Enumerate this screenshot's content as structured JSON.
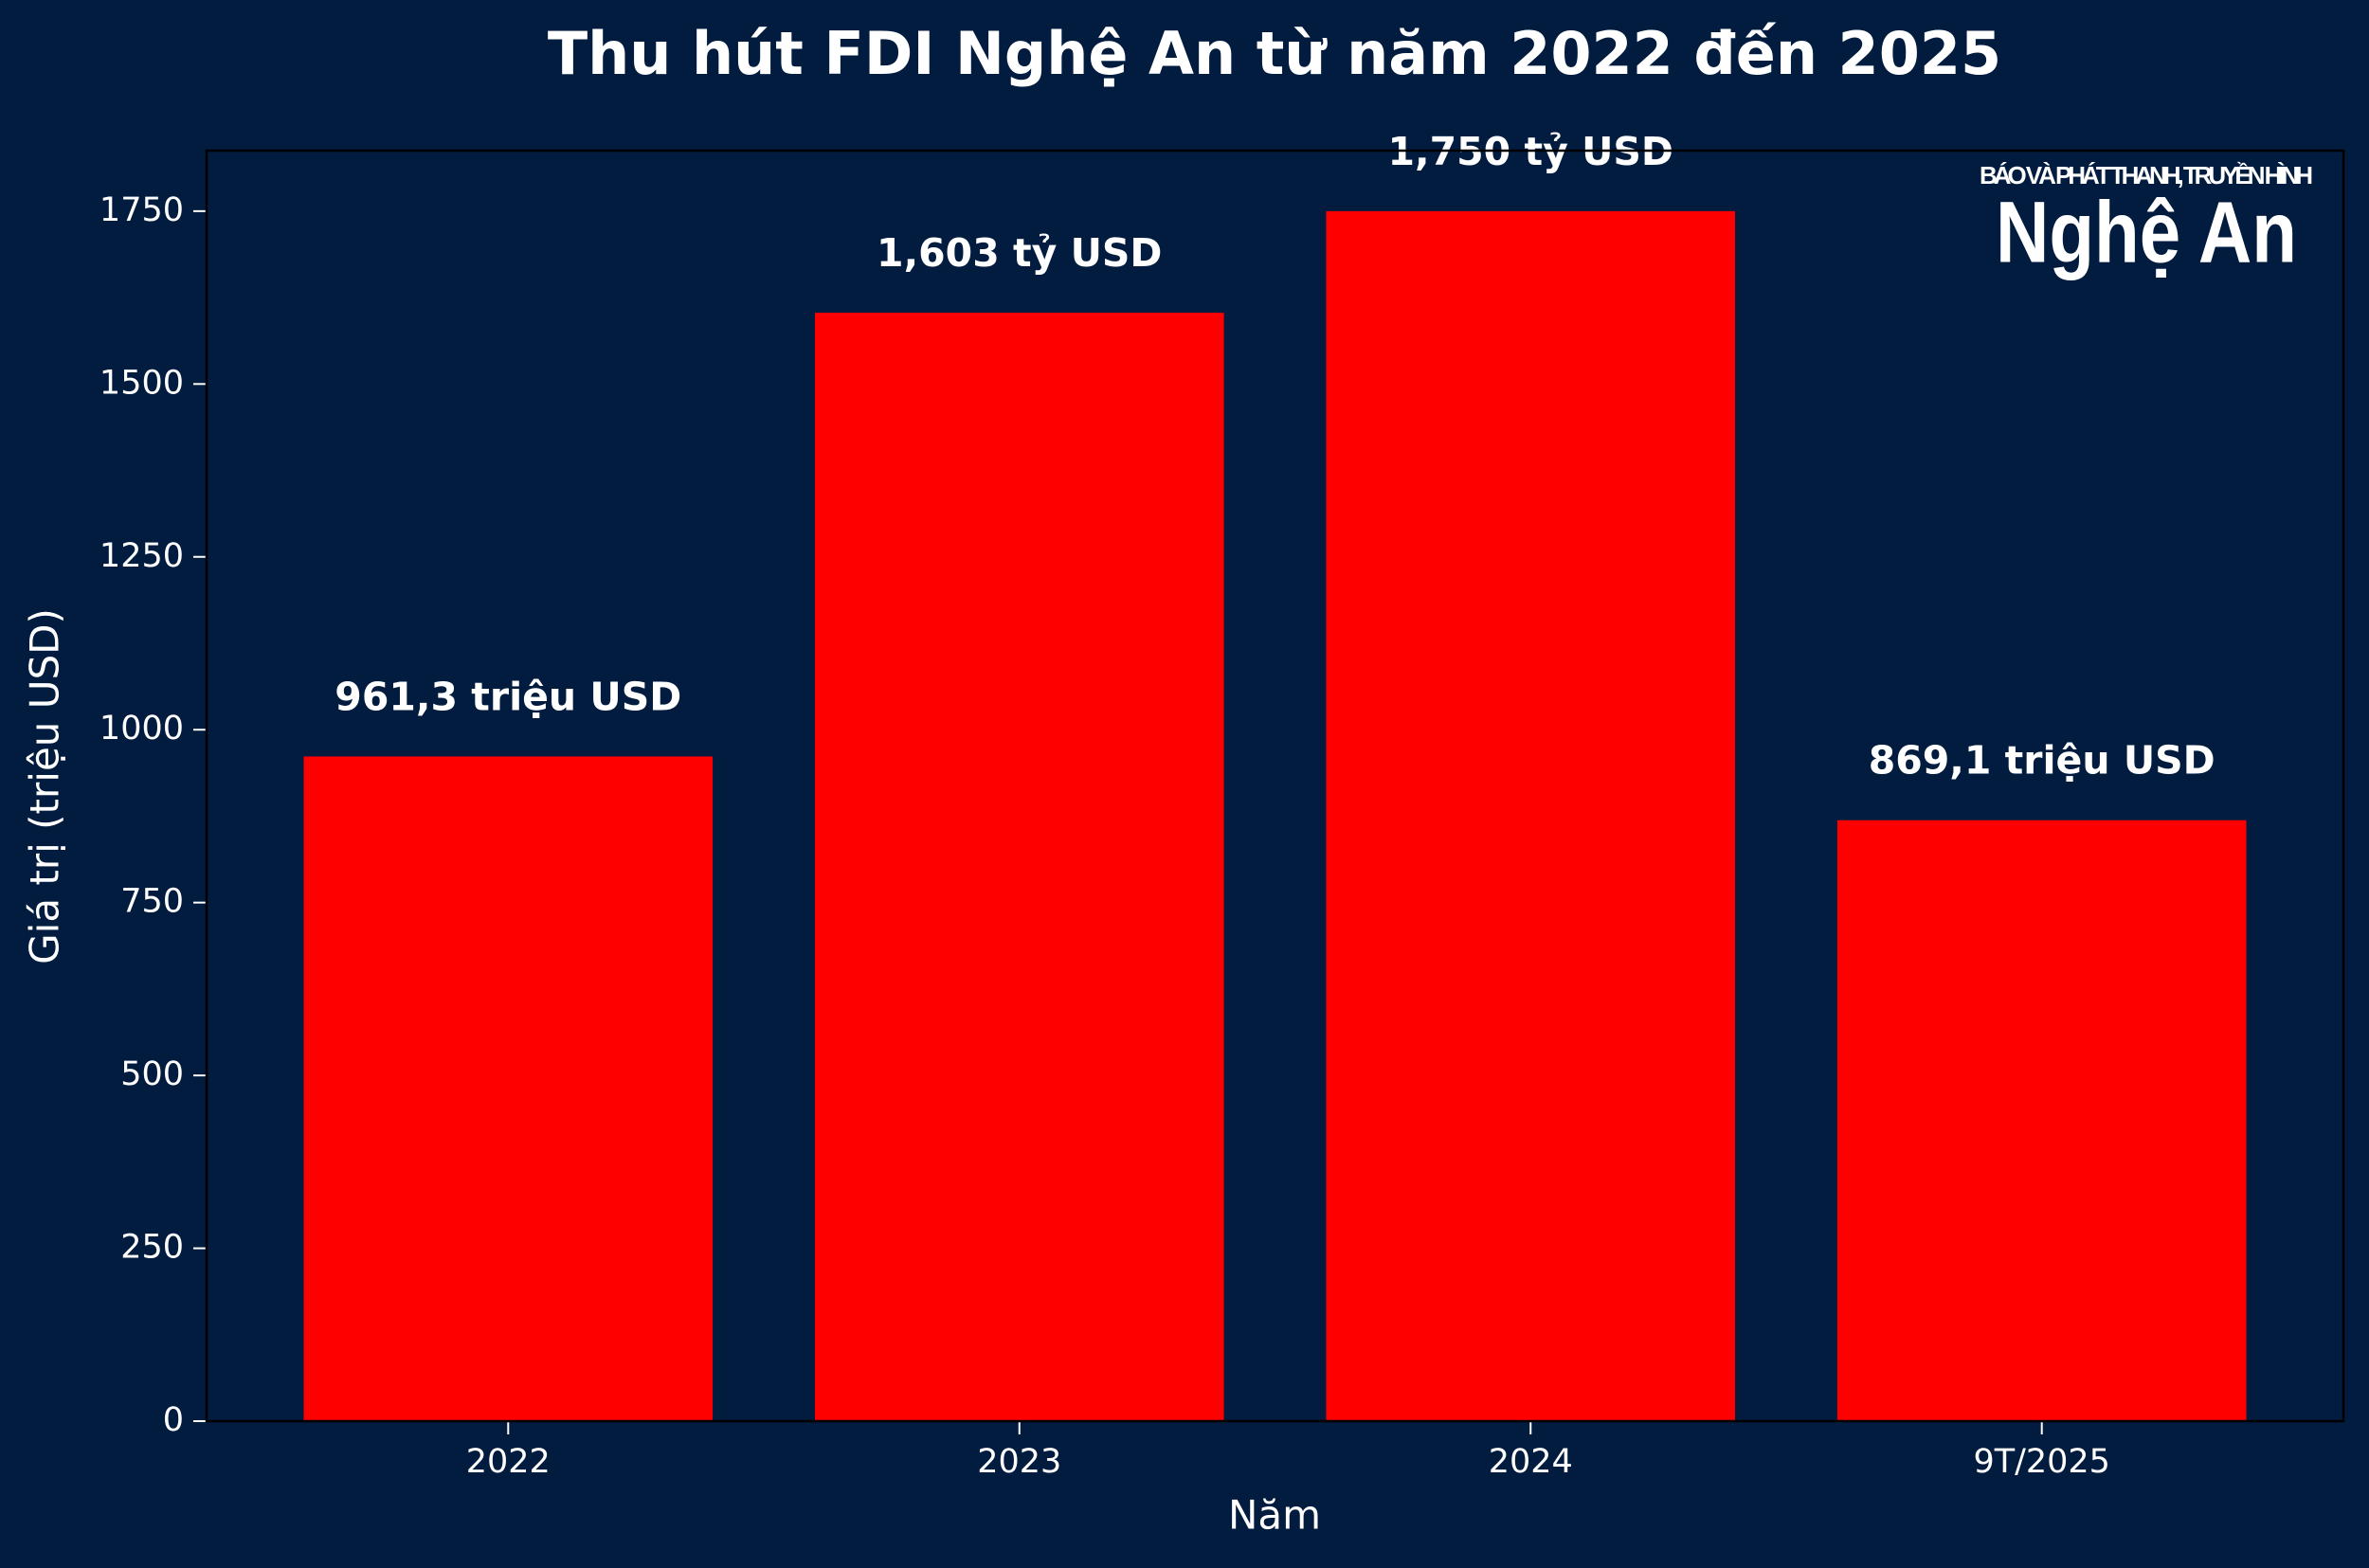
{
  "chart_data": {
    "type": "bar",
    "title": "Thu hút FDI Nghệ An từ năm 2022 đến 2025",
    "x_label": "Năm",
    "y_label": "Giá trị (triệu USD)",
    "categories": [
      "2022",
      "2023",
      "2024",
      "9T/2025"
    ],
    "values": [
      961.3,
      1603,
      1750,
      869.1
    ],
    "value_labels": [
      "961,3 triệu USD",
      "1,603 tỷ USD",
      "1,750 tỷ USD",
      "869,1 triệu USD"
    ],
    "color": "#ff0000",
    "ylim": [
      0,
      1837.5
    ],
    "yticks": [
      0,
      250,
      500,
      750,
      1000,
      1250,
      1500,
      1750
    ],
    "grid": false
  },
  "logo": {
    "tagline": "BÁO VÀ PHÁT THANH, TRUYỀN HÌNH",
    "name": "Nghệ An"
  }
}
